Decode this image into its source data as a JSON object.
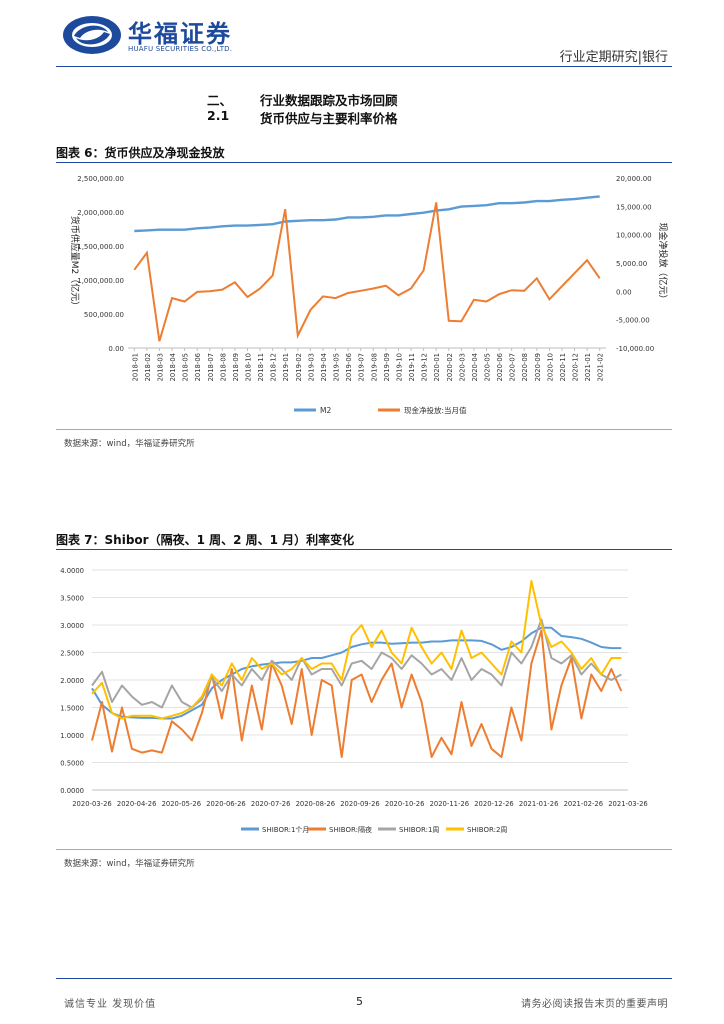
{
  "header": {
    "logo_cn": "华福证券",
    "logo_en": "HUAFU SECURITIES CO.,LTD.",
    "report_type": "行业定期研究|银行"
  },
  "section": {
    "num": "二、",
    "title": "行业数据跟踪及市场回顾",
    "sub_num": "2.1",
    "sub_title": "货币供应与主要利率价格"
  },
  "figure6": {
    "title": "图表 6：货币供应及净现金投放",
    "source": "数据来源：wind，华福证券研究所"
  },
  "figure7": {
    "title": "图表 7：Shibor（隔夜、1 周、2 周、1 月）利率变化",
    "source": "数据来源：wind，华福证券研究所"
  },
  "footer": {
    "left": "诚信专业  发现价值",
    "page": "5",
    "right": "请务必阅读报告末页的重要声明"
  },
  "chart_data": [
    {
      "type": "line",
      "title": "货币供应及净现金投放",
      "categories": [
        "2018-01",
        "2018-02",
        "2018-03",
        "2018-04",
        "2018-05",
        "2018-06",
        "2018-07",
        "2018-08",
        "2018-09",
        "2018-10",
        "2018-11",
        "2018-12",
        "2019-01",
        "2019-02",
        "2019-03",
        "2019-04",
        "2019-05",
        "2019-06",
        "2019-07",
        "2019-08",
        "2019-09",
        "2019-10",
        "2019-11",
        "2019-12",
        "2020-01",
        "2020-02",
        "2020-03",
        "2020-04",
        "2020-05",
        "2020-06",
        "2020-07",
        "2020-08",
        "2020-09",
        "2020-10",
        "2020-11",
        "2020-12",
        "2021-01",
        "2021-02"
      ],
      "ylabel_left": "货币供应量M2（亿元）",
      "ylabel_right": "现金净投放（亿元）",
      "ylim_left": [
        0,
        2500000
      ],
      "ylim_right": [
        -10000,
        20000
      ],
      "yticks_left": [
        "0.00",
        "500,000.00",
        "1,000,000.00",
        "1,500,000.00",
        "2,000,000.00",
        "2,500,000.00"
      ],
      "yticks_right": [
        "-10,000.00",
        "-5,000.00",
        "0.00",
        "5,000.00",
        "10,000.00",
        "15,000.00",
        "20,000.00"
      ],
      "series": [
        {
          "name": "M2",
          "axis": "left",
          "color": "#5b9bd5",
          "values": [
            1720000,
            1730000,
            1740000,
            1740000,
            1740000,
            1760000,
            1770000,
            1790000,
            1800000,
            1800000,
            1810000,
            1820000,
            1860000,
            1870000,
            1880000,
            1880000,
            1890000,
            1920000,
            1920000,
            1930000,
            1950000,
            1950000,
            1970000,
            1990000,
            2020000,
            2040000,
            2080000,
            2090000,
            2100000,
            2130000,
            2130000,
            2140000,
            2160000,
            2160000,
            2180000,
            2190000,
            2210000,
            2230000
          ]
        },
        {
          "name": "现金净投放:当月值",
          "axis": "right",
          "color": "#ed7d31",
          "values": [
            3800,
            6800,
            -8800,
            -1200,
            -1800,
            -100,
            0,
            300,
            1600,
            -1000,
            500,
            2800,
            14500,
            -7800,
            -3300,
            -900,
            -1200,
            -300,
            100,
            500,
            1000,
            -700,
            500,
            3700,
            15700,
            -5200,
            -5300,
            -1500,
            -1800,
            -500,
            200,
            100,
            2300,
            -1400,
            900,
            3200,
            5500,
            2300
          ]
        }
      ]
    },
    {
      "type": "line",
      "title": "Shibor（隔夜、1周、2周、1月）利率变化",
      "x_labels": [
        "2020-03-26",
        "2020-04-26",
        "2020-05-26",
        "2020-06-26",
        "2020-07-26",
        "2020-08-26",
        "2020-09-26",
        "2020-10-26",
        "2020-11-26",
        "2020-12-26",
        "2021-01-26",
        "2021-02-26",
        "2021-03-26"
      ],
      "ylim": [
        0,
        4
      ],
      "yticks": [
        "0.0000",
        "0.5000",
        "1.0000",
        "1.5000",
        "2.0000",
        "2.5000",
        "3.0000",
        "3.5000",
        "4.0000"
      ],
      "series": [
        {
          "name": "SHIBOR:1个月",
          "color": "#5b9bd5",
          "values": [
            1.85,
            1.55,
            1.4,
            1.33,
            1.32,
            1.31,
            1.31,
            1.3,
            1.3,
            1.35,
            1.45,
            1.55,
            1.85,
            2.0,
            2.1,
            2.2,
            2.25,
            2.28,
            2.3,
            2.32,
            2.32,
            2.35,
            2.4,
            2.4,
            2.45,
            2.5,
            2.6,
            2.65,
            2.68,
            2.68,
            2.66,
            2.67,
            2.68,
            2.68,
            2.7,
            2.7,
            2.72,
            2.72,
            2.72,
            2.71,
            2.65,
            2.55,
            2.6,
            2.7,
            2.85,
            2.95,
            2.95,
            2.8,
            2.78,
            2.75,
            2.68,
            2.6,
            2.58,
            2.58
          ]
        },
        {
          "name": "SHIBOR:隔夜",
          "color": "#ed7d31",
          "values": [
            0.9,
            1.6,
            0.7,
            1.5,
            0.75,
            0.68,
            0.72,
            0.68,
            1.25,
            1.1,
            0.9,
            1.4,
            2.1,
            1.3,
            2.2,
            0.9,
            1.9,
            1.1,
            2.3,
            1.9,
            1.2,
            2.2,
            1.0,
            2.0,
            1.9,
            0.6,
            2.0,
            2.1,
            1.6,
            2.0,
            2.3,
            1.5,
            2.1,
            1.6,
            0.6,
            0.95,
            0.65,
            1.6,
            0.8,
            1.2,
            0.75,
            0.6,
            1.5,
            0.9,
            2.3,
            2.9,
            1.1,
            1.9,
            2.4,
            1.3,
            2.1,
            1.8,
            2.2,
            1.8
          ]
        },
        {
          "name": "SHIBOR:1周",
          "color": "#a5a5a5",
          "values": [
            1.9,
            2.15,
            1.6,
            1.9,
            1.7,
            1.55,
            1.6,
            1.5,
            1.9,
            1.6,
            1.5,
            1.65,
            2.05,
            1.8,
            2.1,
            1.9,
            2.2,
            2.0,
            2.35,
            2.2,
            2.0,
            2.4,
            2.1,
            2.2,
            2.2,
            1.9,
            2.3,
            2.35,
            2.2,
            2.5,
            2.4,
            2.2,
            2.45,
            2.3,
            2.1,
            2.2,
            2.0,
            2.4,
            2.0,
            2.2,
            2.1,
            1.9,
            2.5,
            2.3,
            2.6,
            3.1,
            2.4,
            2.3,
            2.45,
            2.1,
            2.3,
            2.1,
            2.0,
            2.1
          ]
        },
        {
          "name": "SHIBOR:2周",
          "color": "#ffc000",
          "values": [
            1.75,
            1.95,
            1.4,
            1.3,
            1.35,
            1.35,
            1.35,
            1.3,
            1.35,
            1.4,
            1.5,
            1.7,
            2.1,
            1.9,
            2.3,
            2.0,
            2.4,
            2.2,
            2.3,
            2.1,
            2.2,
            2.4,
            2.2,
            2.3,
            2.3,
            2.0,
            2.8,
            3.0,
            2.6,
            2.9,
            2.5,
            2.3,
            2.95,
            2.6,
            2.3,
            2.5,
            2.2,
            2.9,
            2.4,
            2.5,
            2.3,
            2.1,
            2.7,
            2.5,
            3.8,
            3.0,
            2.6,
            2.7,
            2.5,
            2.2,
            2.4,
            2.1,
            2.4,
            2.4
          ]
        }
      ]
    }
  ]
}
